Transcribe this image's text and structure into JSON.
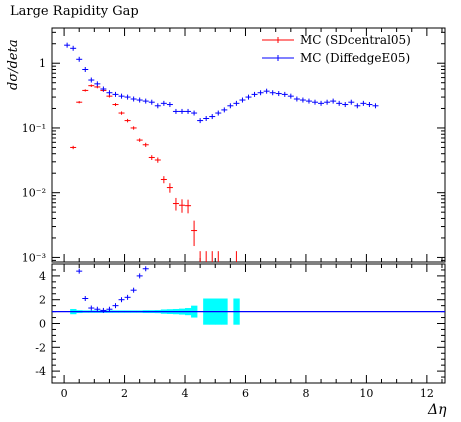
{
  "chart_data": {
    "type": "scatter",
    "title": "Large Rapidity Gap",
    "ylabel": "dσ/deta",
    "xlabel": "Δη",
    "xlim": [
      -0.4,
      12.6
    ],
    "top_panel": {
      "yscale": "log",
      "ylim": [
        0.00085,
        3.5
      ],
      "ytick_labels": [
        {
          "label": "10⁻³",
          "value": 0.001
        },
        {
          "label": "10⁻²",
          "value": 0.01
        },
        {
          "label": "10⁻¹",
          "value": 0.1
        },
        {
          "label": "1",
          "value": 1
        }
      ],
      "series": [
        {
          "name": "MC (SDcentral05)",
          "color": "#ff0000",
          "x": [
            0.3,
            0.5,
            0.7,
            0.9,
            1.1,
            1.3,
            1.5,
            1.7,
            1.9,
            2.1,
            2.3,
            2.5,
            2.7,
            2.9,
            3.1,
            3.3,
            3.5,
            3.7,
            3.9,
            4.1,
            4.3
          ],
          "y": [
            0.05,
            0.25,
            0.38,
            0.45,
            0.43,
            0.38,
            0.31,
            0.23,
            0.17,
            0.13,
            0.1,
            0.065,
            0.055,
            0.035,
            0.032,
            0.016,
            0.012,
            0.0068,
            0.0064,
            0.0063,
            0.0026
          ],
          "err": [
            0.003,
            0.01,
            0.015,
            0.02,
            0.02,
            0.018,
            0.015,
            0.012,
            0.01,
            0.008,
            0.006,
            0.004,
            0.004,
            0.003,
            0.003,
            0.002,
            0.002,
            0.0015,
            0.0015,
            0.0015,
            0.0011
          ],
          "spikes_x": [
            4.5,
            4.7,
            4.9,
            5.1,
            5.7
          ]
        },
        {
          "name": "MC (DiffedgeE05)",
          "color": "#0000ff",
          "x": [
            0.1,
            0.3,
            0.5,
            0.7,
            0.9,
            1.1,
            1.3,
            1.5,
            1.7,
            1.9,
            2.1,
            2.3,
            2.5,
            2.7,
            2.9,
            3.1,
            3.3,
            3.5,
            3.7,
            3.9,
            4.1,
            4.3,
            4.5,
            4.7,
            4.9,
            5.1,
            5.3,
            5.5,
            5.7,
            5.9,
            6.1,
            6.3,
            6.5,
            6.7,
            6.9,
            7.1,
            7.3,
            7.5,
            7.7,
            7.9,
            8.1,
            8.3,
            8.5,
            8.7,
            8.9,
            9.1,
            9.3,
            9.5,
            9.7,
            9.9,
            10.1,
            10.3
          ],
          "y": [
            1.9,
            1.7,
            1.15,
            0.8,
            0.55,
            0.48,
            0.4,
            0.35,
            0.33,
            0.31,
            0.3,
            0.28,
            0.27,
            0.26,
            0.25,
            0.22,
            0.24,
            0.23,
            0.18,
            0.18,
            0.18,
            0.17,
            0.13,
            0.14,
            0.15,
            0.17,
            0.19,
            0.22,
            0.24,
            0.27,
            0.3,
            0.33,
            0.35,
            0.37,
            0.35,
            0.34,
            0.33,
            0.31,
            0.28,
            0.27,
            0.26,
            0.25,
            0.24,
            0.25,
            0.26,
            0.24,
            0.23,
            0.25,
            0.22,
            0.24,
            0.23,
            0.22
          ]
        }
      ]
    },
    "ratio_panel": {
      "ylim": [
        -5,
        5
      ],
      "ytick_labels": [
        "-4",
        "-2",
        "0",
        "2",
        "4"
      ],
      "ytick_values": [
        -4,
        -2,
        0,
        2,
        4
      ],
      "reference_y": 1,
      "blue_points": {
        "x": [
          0.5,
          0.7,
          0.9,
          1.1,
          1.3,
          1.5,
          1.7,
          1.9,
          2.1,
          2.3,
          2.5,
          2.7
        ],
        "y": [
          4.4,
          2.1,
          1.3,
          1.2,
          1.1,
          1.2,
          1.5,
          2.0,
          2.2,
          2.8,
          4.0,
          4.6
        ]
      },
      "band_color": "#00ffff",
      "band": {
        "x": [
          0.3,
          0.5,
          0.7,
          0.9,
          1.1,
          1.3,
          1.5,
          1.7,
          1.9,
          2.1,
          2.3,
          2.5,
          2.7,
          2.9,
          3.1,
          3.3,
          3.5,
          3.7,
          3.9,
          4.1,
          4.3,
          4.5,
          4.7,
          4.9,
          5.1,
          5.3,
          5.5,
          5.7
        ],
        "half_width": [
          0.22,
          0.12,
          0.1,
          0.1,
          0.1,
          0.1,
          0.1,
          0.1,
          0.1,
          0.1,
          0.1,
          0.1,
          0.12,
          0.12,
          0.13,
          0.18,
          0.2,
          0.22,
          0.25,
          0.3,
          0.5,
          0,
          1.1,
          1.1,
          1.1,
          1.1,
          0,
          1.1
        ]
      }
    },
    "xtick_labels": [
      "0",
      "2",
      "4",
      "6",
      "8",
      "10",
      "12"
    ],
    "xtick_values": [
      0,
      2,
      4,
      6,
      8,
      10,
      12
    ],
    "legend_position": "top-right"
  }
}
